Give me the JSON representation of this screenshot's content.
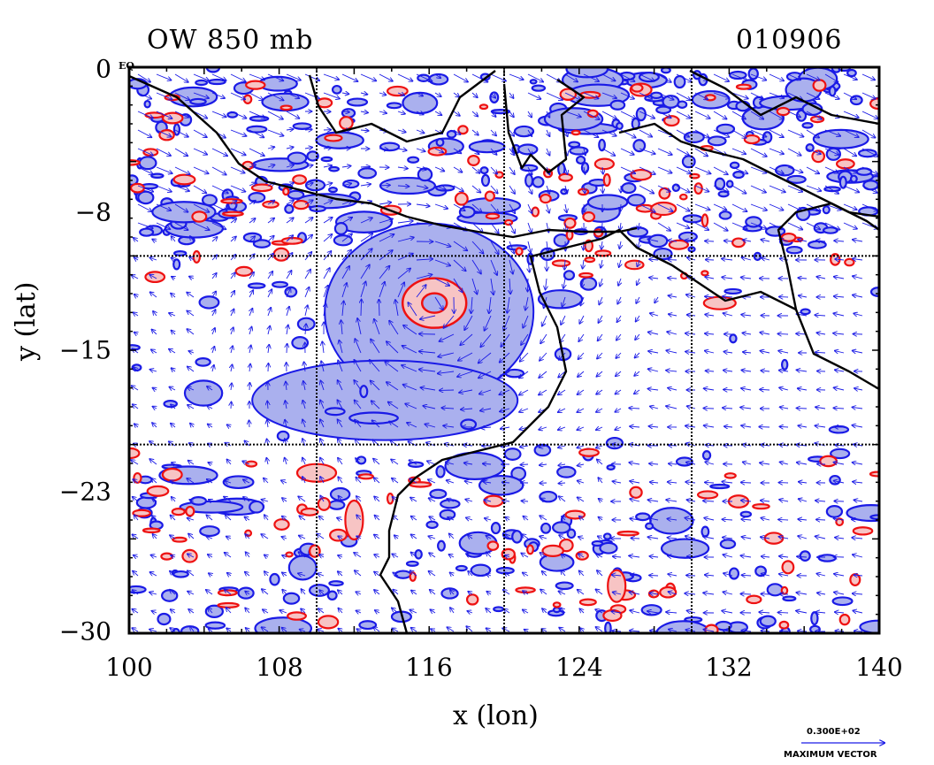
{
  "header": {
    "left_title": "OW 850 mb",
    "right_title": "010906"
  },
  "axes": {
    "xlabel": "x (lon)",
    "ylabel": "y (lat)",
    "xticks": [
      "100",
      "108",
      "116",
      "124",
      "132",
      "140"
    ],
    "yticks": [
      "0",
      "−8",
      "−15",
      "−23",
      "−30"
    ],
    "equator_label": "EQ"
  },
  "legend": {
    "max_vector_value": "0.300E+02",
    "max_vector_caption": "MAXIMUM VECTOR"
  },
  "colors": {
    "positive_contour": "#ee1111",
    "positive_fill": "#f7c4c4",
    "negative_contour": "#1a1ae6",
    "negative_fill": "#aab0ee",
    "vector": "#1a1ae6",
    "coastline": "#000000"
  },
  "chart_data": {
    "type": "contour-vector map",
    "title": "OW 850 mb",
    "date": "010906",
    "x_range": [
      100,
      140
    ],
    "y_range": [
      -30,
      0
    ],
    "grid": true,
    "grid_lon": [
      110,
      120,
      130
    ],
    "grid_lat": [
      -10,
      -20
    ],
    "cyclone_center": {
      "lon": 116,
      "lat": -12.5
    },
    "icons": [
      "vector-arrow-icon"
    ]
  }
}
